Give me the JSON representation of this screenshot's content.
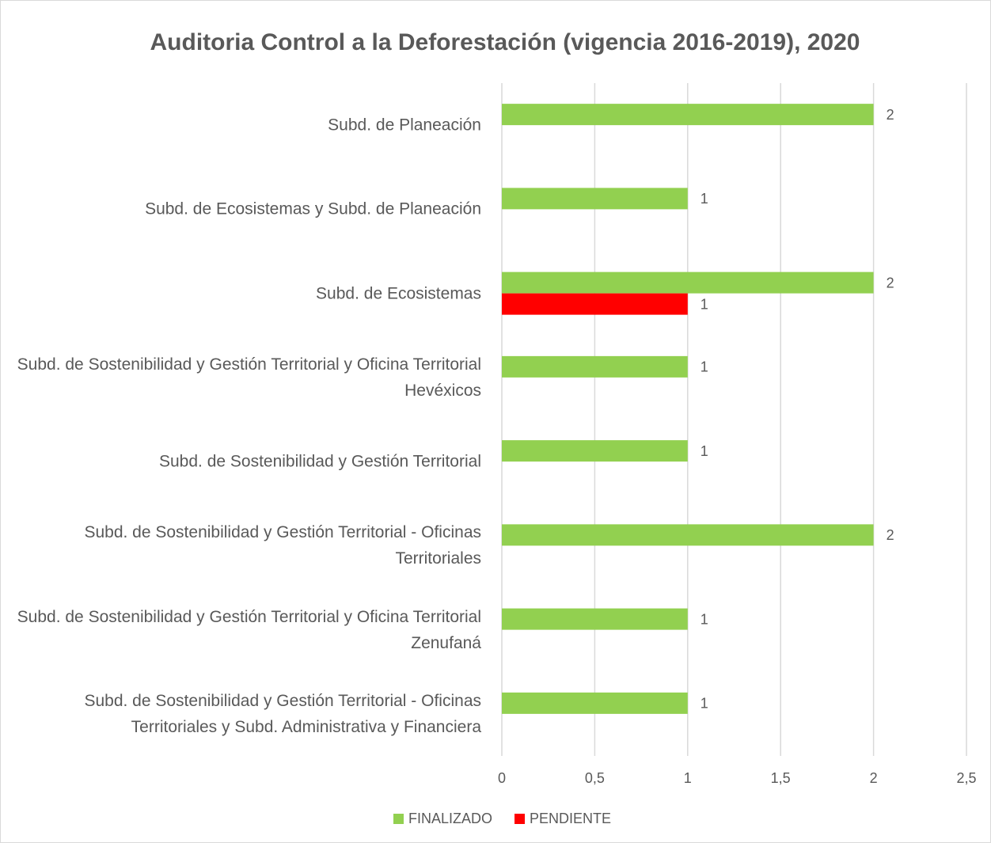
{
  "chart_data": {
    "type": "bar",
    "orientation": "horizontal",
    "title": "Auditoria Control a la Deforestación (vigencia 2016-2019), 2020",
    "categories": [
      "Subd. de Planeación",
      "Subd. de Ecosistemas y Subd. de Planeación",
      "Subd. de Ecosistemas",
      "Subd. de Sostenibilidad  y Gestión Territorial y Oficina Territorial Hevéxicos",
      "Subd. de Sostenibilidad  y Gestión Territorial",
      "Subd. de Sostenibilidad  y Gestión Territorial - Oficinas Territoriales",
      "Subd. de Sostenibilidad  y Gestión Territorial y Oficina Territorial Zenufaná",
      "Subd. de Sostenibilidad  y Gestión Territorial - Oficinas Territoriales y  Subd. Administrativa y Financiera"
    ],
    "series": [
      {
        "name": "FINALIZADO",
        "color": "#92d050",
        "values": [
          2,
          1,
          2,
          1,
          1,
          2,
          1,
          1
        ]
      },
      {
        "name": "PENDIENTE",
        "color": "#ff0000",
        "values": [
          null,
          null,
          1,
          null,
          null,
          null,
          null,
          null
        ]
      }
    ],
    "xlim": [
      0,
      2.5
    ],
    "xticks": [
      0,
      {
        "value": 0.5,
        "label": "0,5"
      },
      1,
      {
        "value": 1.5,
        "label": "1,5"
      },
      2,
      {
        "value": 2.5,
        "label": "2,5"
      }
    ],
    "grid": true,
    "legend": "bottom"
  }
}
